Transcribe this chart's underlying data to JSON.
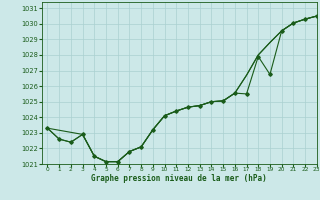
{
  "title": "Graphe pression niveau de la mer (hPa)",
  "bg_color": "#cce8e8",
  "grid_color": "#aad0d0",
  "line_color": "#1a5c1a",
  "marker_color": "#1a5c1a",
  "xlim": [
    -0.5,
    23
  ],
  "ylim": [
    1021,
    1031.4
  ],
  "xticks": [
    0,
    1,
    2,
    3,
    4,
    5,
    6,
    7,
    8,
    9,
    10,
    11,
    12,
    13,
    14,
    15,
    16,
    17,
    18,
    19,
    20,
    21,
    22,
    23
  ],
  "yticks": [
    1021,
    1022,
    1023,
    1024,
    1025,
    1026,
    1027,
    1028,
    1029,
    1030,
    1031
  ],
  "series1_x": [
    0,
    1,
    2,
    3,
    4,
    5,
    6,
    7,
    8,
    9,
    10,
    11,
    12,
    13,
    14,
    15,
    16,
    17,
    18,
    19,
    20,
    21,
    22,
    23
  ],
  "series1_y": [
    1023.3,
    1022.6,
    1022.4,
    1022.9,
    1021.5,
    1021.15,
    1021.15,
    1021.8,
    1022.1,
    1023.2,
    1024.1,
    1024.4,
    1024.65,
    1024.75,
    1025.0,
    1025.05,
    1025.55,
    1025.5,
    1027.9,
    1026.75,
    1029.55,
    1030.05,
    1030.3,
    1030.5
  ],
  "series2_x": [
    0,
    1,
    2,
    3,
    4,
    5,
    6,
    7,
    8,
    9,
    10,
    11,
    12,
    13,
    14,
    15,
    16,
    17,
    18,
    19,
    20,
    21,
    22,
    23
  ],
  "series2_y": [
    1023.3,
    1022.6,
    1022.4,
    1022.9,
    1021.5,
    1021.15,
    1021.15,
    1021.8,
    1022.1,
    1023.2,
    1024.1,
    1024.4,
    1024.65,
    1024.75,
    1025.0,
    1025.05,
    1025.55,
    1026.7,
    1028.0,
    1028.8,
    1029.55,
    1030.05,
    1030.3,
    1030.5
  ],
  "series3_x": [
    0,
    3,
    4,
    5,
    6,
    7,
    8,
    9,
    10,
    11,
    12,
    13,
    14,
    15,
    16,
    17,
    18,
    19,
    20,
    21,
    22,
    23
  ],
  "series3_y": [
    1023.3,
    1022.9,
    1021.5,
    1021.15,
    1021.15,
    1021.8,
    1022.1,
    1023.2,
    1024.1,
    1024.4,
    1024.65,
    1024.75,
    1025.0,
    1025.05,
    1025.55,
    1026.7,
    1028.0,
    1028.8,
    1029.55,
    1030.05,
    1030.3,
    1030.5
  ]
}
